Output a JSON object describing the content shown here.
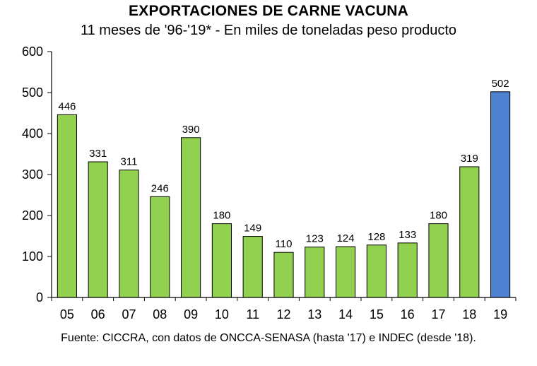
{
  "chart_data": {
    "type": "bar",
    "title": "EXPORTACIONES DE CARNE VACUNA",
    "subtitle": "11 meses de '96-'19* - En miles de toneladas peso producto",
    "source": "Fuente: CICCRA, con datos de ONCCA-SENASA (hasta '17) e INDEC (desde '18).",
    "categories": [
      "05",
      "06",
      "07",
      "08",
      "09",
      "10",
      "11",
      "12",
      "13",
      "14",
      "15",
      "16",
      "17",
      "18",
      "19"
    ],
    "values": [
      446,
      331,
      311,
      246,
      390,
      180,
      149,
      110,
      123,
      124,
      128,
      133,
      180,
      319,
      502
    ],
    "ylim": [
      0,
      600
    ],
    "yticks": [
      0,
      100,
      200,
      300,
      400,
      500,
      600
    ],
    "grid": false,
    "colors": {
      "bar": "#92d050",
      "highlight": "#4f81d1",
      "highlight_index": 14,
      "edge": "#000000"
    }
  }
}
